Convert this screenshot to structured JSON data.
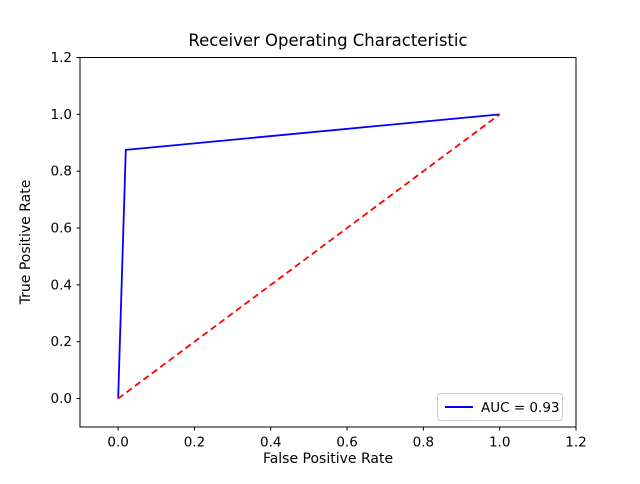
{
  "chart_data": {
    "type": "line",
    "title": "Receiver Operating Characteristic",
    "xlabel": "False Positive Rate",
    "ylabel": "True Positive Rate",
    "xlim": [
      -0.1,
      1.2
    ],
    "ylim": [
      -0.1,
      1.2
    ],
    "xticks": [
      0.0,
      0.2,
      0.4,
      0.6,
      0.8,
      1.0,
      1.2
    ],
    "yticks": [
      0.0,
      0.2,
      0.4,
      0.6,
      0.8,
      1.0,
      1.2
    ],
    "grid": false,
    "background_color": "#ffffff",
    "text_color": "#000000",
    "legend": {
      "position": "lower right",
      "entries": [
        {
          "label": "AUC = 0.93",
          "color": "#0000ff",
          "style": "solid"
        }
      ]
    },
    "series": [
      {
        "name": "roc-curve",
        "color": "#0000ff",
        "style": "solid",
        "x": [
          0.0,
          0.02,
          1.0
        ],
        "y": [
          0.0,
          0.875,
          1.0
        ]
      },
      {
        "name": "chance-diagonal",
        "color": "#ff0000",
        "style": "dashed",
        "x": [
          0.0,
          1.0
        ],
        "y": [
          0.0,
          1.0
        ]
      }
    ],
    "auc": 0.93
  }
}
